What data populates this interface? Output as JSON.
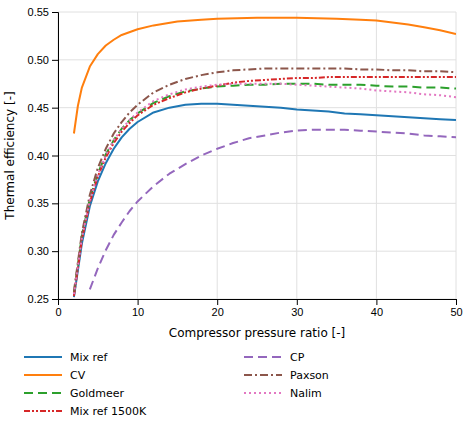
{
  "chart_data": {
    "type": "line",
    "xlabel": "Compressor pressure ratio [-]",
    "ylabel": "Thermal efficiency [-]",
    "xlim": [
      0,
      50
    ],
    "ylim": [
      0.25,
      0.55
    ],
    "xticks": [
      0,
      10,
      20,
      30,
      40,
      50
    ],
    "yticks": [
      0.25,
      {
        "value": 0.3,
        "label": "0.30"
      },
      0.35,
      {
        "value": 0.4,
        "label": "0.40"
      },
      0.45,
      {
        "value": 0.5,
        "label": "0.50"
      },
      0.55
    ],
    "grid": true,
    "series": [
      {
        "name": "Mix ref",
        "line_style": "solid",
        "x": [
          2,
          3,
          4,
          5,
          6,
          7,
          8,
          9,
          10,
          12,
          14,
          16,
          18,
          20,
          22,
          24,
          26,
          28,
          30,
          32,
          34,
          36,
          38,
          40,
          42,
          44,
          46,
          48,
          50
        ],
        "values": [
          0.252,
          0.308,
          0.347,
          0.373,
          0.392,
          0.407,
          0.419,
          0.428,
          0.435,
          0.445,
          0.45,
          0.453,
          0.454,
          0.454,
          0.453,
          0.452,
          0.451,
          0.45,
          0.448,
          0.447,
          0.446,
          0.444,
          0.443,
          0.442,
          0.441,
          0.44,
          0.439,
          0.438,
          0.437
        ]
      },
      {
        "name": "CV",
        "line_style": "solid",
        "x": [
          2,
          2.5,
          3,
          4,
          5,
          6,
          7,
          8,
          10,
          12,
          15,
          18,
          20,
          25,
          30,
          35,
          38,
          40,
          42,
          44,
          46,
          48,
          50
        ],
        "values": [
          0.423,
          0.452,
          0.471,
          0.493,
          0.506,
          0.515,
          0.521,
          0.526,
          0.532,
          0.536,
          0.54,
          0.542,
          0.543,
          0.544,
          0.544,
          0.543,
          0.542,
          0.541,
          0.539,
          0.537,
          0.534,
          0.531,
          0.527
        ]
      },
      {
        "name": "Goldmeer",
        "line_style": "dashed",
        "x": [
          2,
          3,
          4,
          5,
          6,
          7,
          8,
          9,
          10,
          12,
          14,
          16,
          18,
          20,
          22,
          24,
          26,
          28,
          30,
          32,
          34,
          36,
          38,
          40,
          42,
          44,
          46,
          48,
          50
        ],
        "values": [
          0.256,
          0.316,
          0.355,
          0.381,
          0.401,
          0.416,
          0.428,
          0.437,
          0.444,
          0.455,
          0.462,
          0.467,
          0.47,
          0.472,
          0.473,
          0.474,
          0.474,
          0.475,
          0.475,
          0.475,
          0.474,
          0.474,
          0.474,
          0.473,
          0.472,
          0.472,
          0.471,
          0.471,
          0.47
        ]
      },
      {
        "name": "Mix ref 1500K",
        "line_style": "dashdotdot",
        "x": [
          2,
          3,
          4,
          5,
          6,
          7,
          8,
          9,
          10,
          12,
          14,
          16,
          18,
          20,
          22,
          24,
          26,
          28,
          30,
          32,
          34,
          36,
          38,
          40,
          42,
          44,
          46,
          48,
          50
        ],
        "values": [
          0.253,
          0.312,
          0.351,
          0.378,
          0.398,
          0.413,
          0.425,
          0.434,
          0.442,
          0.453,
          0.46,
          0.466,
          0.47,
          0.473,
          0.476,
          0.478,
          0.479,
          0.48,
          0.481,
          0.481,
          0.482,
          0.482,
          0.482,
          0.482,
          0.482,
          0.482,
          0.482,
          0.482,
          0.482
        ]
      },
      {
        "name": "CP",
        "line_style": "dashed",
        "x": [
          4,
          5,
          6,
          7,
          8,
          9,
          10,
          12,
          14,
          16,
          18,
          20,
          22,
          24,
          26,
          28,
          30,
          32,
          34,
          36,
          38,
          40,
          42,
          44,
          46,
          48,
          50
        ],
        "values": [
          0.26,
          0.282,
          0.301,
          0.317,
          0.33,
          0.342,
          0.352,
          0.368,
          0.381,
          0.391,
          0.4,
          0.407,
          0.413,
          0.418,
          0.421,
          0.424,
          0.426,
          0.427,
          0.427,
          0.427,
          0.426,
          0.425,
          0.424,
          0.423,
          0.421,
          0.42,
          0.419
        ]
      },
      {
        "name": "Paxson",
        "line_style": "dashdot",
        "x": [
          2,
          3,
          4,
          5,
          6,
          7,
          8,
          9,
          10,
          12,
          14,
          16,
          18,
          20,
          22,
          24,
          26,
          28,
          30,
          32,
          34,
          36,
          38,
          40,
          42,
          44,
          46,
          48,
          50
        ],
        "values": [
          0.258,
          0.319,
          0.359,
          0.387,
          0.407,
          0.423,
          0.435,
          0.445,
          0.453,
          0.466,
          0.474,
          0.48,
          0.484,
          0.487,
          0.489,
          0.49,
          0.491,
          0.491,
          0.491,
          0.491,
          0.491,
          0.491,
          0.49,
          0.49,
          0.489,
          0.489,
          0.488,
          0.488,
          0.487
        ]
      },
      {
        "name": "Nalim",
        "line_style": "dotted",
        "x": [
          2,
          3,
          4,
          5,
          6,
          7,
          8,
          9,
          10,
          12,
          14,
          16,
          18,
          20,
          22,
          24,
          26,
          28,
          30,
          32,
          34,
          36,
          38,
          40,
          42,
          44,
          46,
          48,
          50
        ],
        "values": [
          0.255,
          0.314,
          0.353,
          0.38,
          0.4,
          0.416,
          0.428,
          0.437,
          0.445,
          0.457,
          0.464,
          0.469,
          0.472,
          0.474,
          0.475,
          0.475,
          0.475,
          0.475,
          0.474,
          0.473,
          0.472,
          0.471,
          0.47,
          0.468,
          0.467,
          0.466,
          0.464,
          0.463,
          0.461
        ]
      }
    ]
  }
}
